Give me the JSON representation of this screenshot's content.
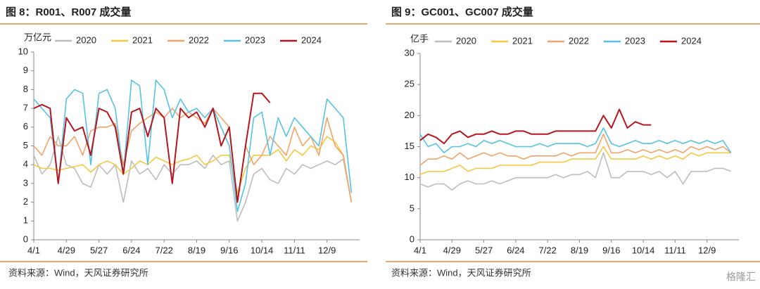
{
  "chart_data": [
    {
      "type": "line",
      "title": "图 8：R001、R007 成交量",
      "ylabel": "万亿元",
      "note": "资料来源：Wind，天风证券研究所",
      "x": [
        0,
        7,
        14,
        21,
        28,
        35,
        42,
        49,
        56,
        63,
        70,
        77,
        84,
        91,
        98,
        105,
        112,
        119,
        126,
        133,
        140,
        147,
        154,
        161,
        168,
        175,
        182,
        189,
        196,
        203,
        210,
        217,
        224,
        231,
        238,
        245,
        252,
        259,
        266,
        273
      ],
      "xlim": [
        0,
        280
      ],
      "xticks": [
        {
          "value": 0,
          "label": "4/1"
        },
        {
          "value": 28,
          "label": "4/29"
        },
        {
          "value": 56,
          "label": "5/27"
        },
        {
          "value": 84,
          "label": "6/24"
        },
        {
          "value": 112,
          "label": "7/22"
        },
        {
          "value": 140,
          "label": "8/19"
        },
        {
          "value": 168,
          "label": "9/16"
        },
        {
          "value": 196,
          "label": "10/14"
        },
        {
          "value": 224,
          "label": "11/11"
        },
        {
          "value": 252,
          "label": "12/9"
        }
      ],
      "ylim": [
        0,
        10
      ],
      "yticks": [
        0,
        1,
        2,
        3,
        4,
        5,
        6,
        7,
        8,
        9,
        10
      ],
      "grid": false,
      "series": [
        {
          "name": "2020",
          "color": "#bdbdbd",
          "values": [
            4.5,
            3.5,
            4,
            5.5,
            4,
            3.8,
            3,
            2.8,
            4,
            3.5,
            4,
            2,
            4.2,
            3.5,
            3.8,
            3.2,
            4,
            3.5,
            4,
            4,
            4.2,
            3.8,
            4.5,
            4,
            4.2,
            1,
            2,
            3.5,
            3.8,
            3.2,
            3,
            3.8,
            3.5,
            4,
            3.8,
            4,
            4.2,
            4,
            4.3,
            2
          ]
        },
        {
          "name": "2021",
          "color": "#f5c842",
          "values": [
            4,
            3.8,
            3.8,
            3.7,
            3.8,
            3.9,
            4,
            3.6,
            4,
            4.2,
            4,
            3.5,
            3.8,
            4.2,
            4,
            4.4,
            4.2,
            4,
            4.2,
            4.3,
            4.5,
            4,
            4.2,
            4.5,
            4.5,
            2.5,
            3.8,
            4.5,
            4.5,
            4.5,
            4.8,
            4.2,
            4.8,
            4.5,
            5,
            4.8,
            5.5,
            5.2,
            4.5,
            2
          ]
        },
        {
          "name": "2022",
          "color": "#f0a46a",
          "values": [
            5,
            4.5,
            5.5,
            5,
            5,
            5.5,
            4.5,
            5.8,
            6,
            6,
            6.2,
            4,
            5.8,
            6.2,
            6.5,
            6.8,
            6.5,
            7,
            6.5,
            6.8,
            6.5,
            6.2,
            7,
            6.5,
            6,
            2,
            5,
            4,
            4.5,
            5.5,
            5,
            4.5,
            6,
            5,
            5.5,
            4.5,
            6.5,
            5,
            4.5,
            2
          ]
        },
        {
          "name": "2023",
          "color": "#55c3e3",
          "values": [
            7.5,
            7,
            6.5,
            3,
            7.5,
            8,
            7.8,
            4,
            7.8,
            8,
            7,
            3.5,
            8.5,
            8.2,
            4,
            8.5,
            8,
            6.5,
            7.5,
            6.8,
            7,
            6.5,
            7,
            6,
            5,
            1.5,
            3,
            6.5,
            6.8,
            4.5,
            6.5,
            5.5,
            6.5,
            6,
            5.5,
            5,
            7.5,
            7,
            6.5,
            2.5
          ]
        },
        {
          "name": "2024",
          "color": "#b5161f",
          "values": [
            7,
            7.2,
            7,
            3,
            6.5,
            5.8,
            6,
            4.5,
            7,
            6.8,
            6,
            3.5,
            6.8,
            7,
            5.5,
            7,
            6.5,
            3,
            7,
            6.5,
            6.8,
            6,
            7,
            5,
            6,
            2,
            5,
            7.8,
            7.8,
            7.3,
            null,
            null,
            null,
            null,
            null,
            null,
            null,
            null,
            null,
            null
          ]
        }
      ]
    },
    {
      "type": "line",
      "title": "图 9：GC001、GC007 成交量",
      "ylabel": "亿手",
      "note": "资料来源：Wind，天风证券研究所",
      "x": [
        0,
        7,
        14,
        21,
        28,
        35,
        42,
        49,
        56,
        63,
        70,
        77,
        84,
        91,
        98,
        105,
        112,
        119,
        126,
        133,
        140,
        147,
        154,
        161,
        168,
        175,
        182,
        189,
        196,
        203,
        210,
        217,
        224,
        231,
        238,
        245,
        252,
        259,
        266,
        273
      ],
      "xlim": [
        0,
        280
      ],
      "xticks": [
        {
          "value": 0,
          "label": "4/1"
        },
        {
          "value": 28,
          "label": "4/29"
        },
        {
          "value": 56,
          "label": "5/27"
        },
        {
          "value": 84,
          "label": "6/24"
        },
        {
          "value": 112,
          "label": "7/22"
        },
        {
          "value": 140,
          "label": "8/19"
        },
        {
          "value": 168,
          "label": "9/16"
        },
        {
          "value": 196,
          "label": "10/14"
        },
        {
          "value": 224,
          "label": "11/11"
        },
        {
          "value": 252,
          "label": "12/9"
        }
      ],
      "ylim": [
        0,
        30
      ],
      "yticks": [
        0,
        5,
        10,
        15,
        20,
        25,
        30
      ],
      "grid": false,
      "series": [
        {
          "name": "2020",
          "color": "#bdbdbd",
          "values": [
            9,
            8.5,
            9,
            9,
            8,
            9,
            9.5,
            9,
            9,
            9.5,
            9,
            9.5,
            10,
            10,
            10,
            10,
            10,
            10.5,
            10,
            10.5,
            10.5,
            11,
            10,
            14,
            10,
            10,
            11,
            11,
            11,
            10.5,
            11,
            10,
            11,
            9,
            11,
            11,
            11,
            11.5,
            11.5,
            11
          ]
        },
        {
          "name": "2021",
          "color": "#f5c842",
          "values": [
            10.5,
            11,
            11,
            11,
            11.5,
            12,
            11,
            11.5,
            11.5,
            11.5,
            12,
            12,
            12,
            12,
            12,
            12.5,
            12.5,
            12.5,
            12.5,
            13,
            13,
            13,
            13,
            15,
            13,
            13,
            13,
            13,
            13.5,
            13,
            13.5,
            13,
            13.5,
            13,
            14,
            13.5,
            14,
            14,
            14,
            14
          ]
        },
        {
          "name": "2022",
          "color": "#f0a46a",
          "values": [
            12,
            13,
            13,
            13.5,
            13,
            14,
            13,
            13.5,
            14,
            13.5,
            14,
            13.5,
            13.5,
            13,
            13.5,
            13.5,
            13.5,
            13.5,
            14,
            13.5,
            14,
            14,
            14,
            17,
            14,
            14,
            14.5,
            14,
            14.5,
            14,
            14.5,
            14,
            14.5,
            14,
            15,
            14.5,
            15,
            14.5,
            15,
            14
          ]
        },
        {
          "name": "2023",
          "color": "#55c3e3",
          "values": [
            17,
            15,
            15.5,
            14,
            15,
            15,
            15.5,
            15,
            16,
            15.5,
            16,
            15.5,
            15,
            15,
            15,
            15.5,
            15,
            15.5,
            15.5,
            15.5,
            15.5,
            15,
            15.5,
            18,
            15.5,
            15,
            15.5,
            16,
            15.5,
            15.5,
            16,
            15.5,
            16,
            15.5,
            16,
            15.5,
            16,
            15.5,
            16,
            14
          ]
        },
        {
          "name": "2024",
          "color": "#b5161f",
          "values": [
            16,
            17,
            16.5,
            15.5,
            17,
            17.5,
            16.5,
            17,
            17,
            17.5,
            17,
            17,
            17.5,
            17.5,
            17,
            17,
            17,
            17.5,
            17.5,
            17.5,
            17.5,
            17.5,
            17.5,
            20,
            18,
            21,
            18,
            19,
            18.5,
            18.5,
            null,
            null,
            null,
            null,
            null,
            null,
            null,
            null,
            null,
            null
          ]
        }
      ]
    }
  ],
  "watermark": "格隆汇"
}
